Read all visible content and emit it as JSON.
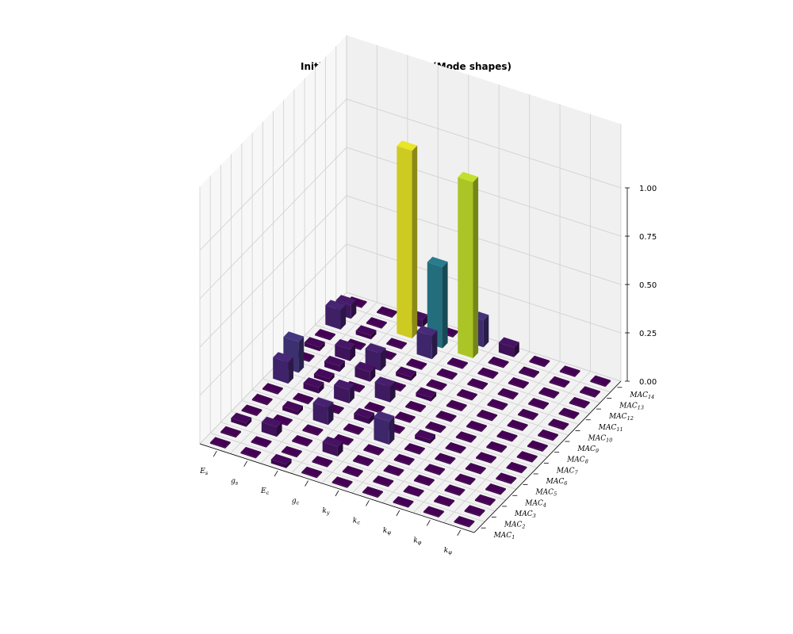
{
  "chart_data": {
    "type": "bar3d",
    "title": "Initial sensitivity matrix (Mode shapes)",
    "x_labels": [
      {
        "base": "E",
        "sub": "s"
      },
      {
        "base": "g",
        "sub": "s"
      },
      {
        "base": "E",
        "sub": "c"
      },
      {
        "base": "g",
        "sub": "c"
      },
      {
        "base": "k",
        "sub": "y"
      },
      {
        "base": "k",
        "sub": "c"
      },
      {
        "base": "k",
        "sub": "φ"
      },
      {
        "base": "k",
        "sub": "φ"
      },
      {
        "base": "k",
        "sub": "φ"
      }
    ],
    "y_labels": [
      {
        "base": "MAC",
        "sub": "1"
      },
      {
        "base": "MAC",
        "sub": "2"
      },
      {
        "base": "MAC",
        "sub": "3"
      },
      {
        "base": "MAC",
        "sub": "4"
      },
      {
        "base": "MAC",
        "sub": "5"
      },
      {
        "base": "MAC",
        "sub": "6"
      },
      {
        "base": "MAC",
        "sub": "7"
      },
      {
        "base": "MAC",
        "sub": "8"
      },
      {
        "base": "MAC",
        "sub": "9"
      },
      {
        "base": "MAC",
        "sub": "10"
      },
      {
        "base": "MAC",
        "sub": "11"
      },
      {
        "base": "MAC",
        "sub": "12"
      },
      {
        "base": "MAC",
        "sub": "13"
      },
      {
        "base": "MAC",
        "sub": "14"
      }
    ],
    "zlim": [
      0,
      1
    ],
    "z_ticks": [
      "0.00",
      "0.25",
      "0.50",
      "0.75",
      "1.00"
    ],
    "colormap": "viridis",
    "grid": true,
    "values": [
      [
        0.0,
        0.0,
        0.02,
        0.0,
        0.0,
        0.0,
        0.0,
        0.0,
        0.0
      ],
      [
        0.0,
        0.0,
        0.0,
        0.0,
        0.0,
        0.0,
        0.0,
        0.0,
        0.0
      ],
      [
        0.02,
        0.05,
        0.0,
        0.05,
        0.0,
        0.0,
        0.0,
        0.0,
        0.0
      ],
      [
        0.0,
        0.0,
        0.0,
        0.0,
        0.0,
        0.0,
        0.0,
        0.0,
        0.0
      ],
      [
        0.0,
        0.02,
        0.09,
        0.0,
        0.12,
        0.0,
        0.0,
        0.0,
        0.0
      ],
      [
        0.0,
        0.0,
        0.0,
        0.03,
        0.0,
        0.02,
        0.0,
        0.0,
        0.0
      ],
      [
        0.11,
        0.03,
        0.07,
        0.0,
        0.0,
        0.0,
        0.0,
        0.0,
        0.0
      ],
      [
        0.16,
        0.02,
        0.0,
        0.08,
        0.0,
        0.0,
        0.0,
        0.0,
        0.0
      ],
      [
        0.0,
        0.03,
        0.05,
        0.0,
        0.02,
        0.0,
        0.0,
        0.0,
        0.0
      ],
      [
        0.02,
        0.06,
        0.09,
        0.02,
        0.0,
        0.0,
        0.0,
        0.0,
        0.0
      ],
      [
        0.0,
        0.0,
        0.0,
        0.0,
        0.0,
        0.0,
        0.0,
        0.0,
        0.0
      ],
      [
        0.1,
        0.02,
        0.0,
        0.12,
        0.0,
        0.0,
        0.0,
        0.0,
        0.0
      ],
      [
        0.07,
        0.0,
        0.97,
        0.42,
        0.91,
        0.0,
        0.0,
        0.0,
        0.0
      ],
      [
        0.0,
        0.0,
        0.04,
        0.0,
        0.14,
        0.05,
        0.0,
        0.0,
        0.0
      ]
    ]
  }
}
